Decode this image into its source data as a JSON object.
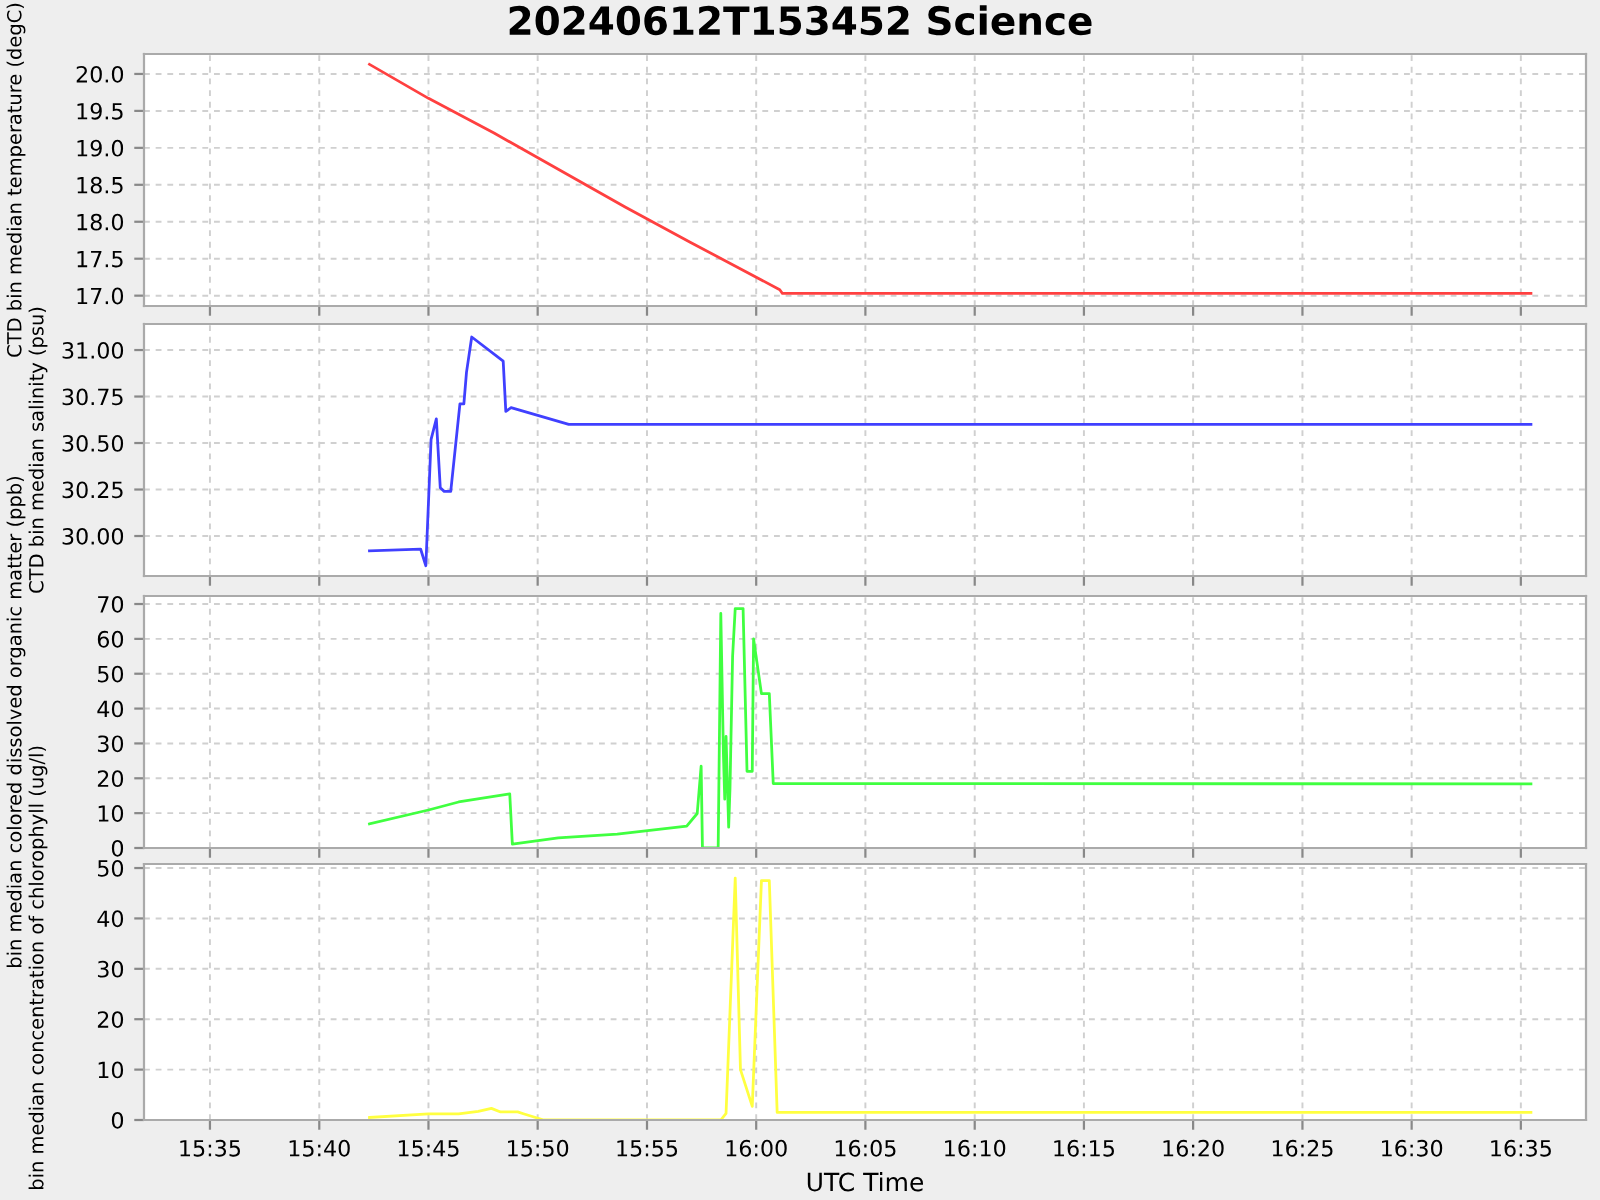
{
  "chart_data": [
    {
      "type": "line",
      "title": "20240612T153452 Science",
      "ylabel": "CTD bin median temperature (degC)",
      "xlim": [
        15.533,
        16.633
      ],
      "ylim": [
        16.86,
        20.27
      ],
      "yticks": [
        {
          "value": 17.0,
          "label": "17.0"
        },
        {
          "value": 17.5,
          "label": "17.5"
        },
        {
          "value": 18.0,
          "label": "18.0"
        },
        {
          "value": 18.5,
          "label": "18.5"
        },
        {
          "value": 19.0,
          "label": "19.0"
        },
        {
          "value": 19.5,
          "label": "19.5"
        },
        {
          "value": 20.0,
          "label": "20.0"
        }
      ],
      "grid": true,
      "tick_labels": "y",
      "series": [
        {
          "color": "#ff4040",
          "x": [
            15.705,
            15.75,
            15.8,
            15.85,
            15.9,
            15.95,
            16.018,
            16.02,
            16.591
          ],
          "values": [
            20.13,
            19.67,
            19.2,
            18.7,
            18.2,
            17.72,
            17.08,
            17.03,
            17.03
          ]
        }
      ]
    },
    {
      "type": "line",
      "ylabel": "CTD bin median salinity (psu)",
      "xlim": [
        15.533,
        16.633
      ],
      "ylim": [
        29.785,
        31.14
      ],
      "yticks": [
        {
          "value": 30.0,
          "label": "30.00"
        },
        {
          "value": 30.25,
          "label": "30.25"
        },
        {
          "value": 30.5,
          "label": "30.50"
        },
        {
          "value": 30.75,
          "label": "30.75"
        },
        {
          "value": 31.0,
          "label": "31.00"
        }
      ],
      "grid": true,
      "tick_labels": "y",
      "series": [
        {
          "color": "#4040ff",
          "x": [
            15.705,
            15.744,
            15.748,
            15.752,
            15.756,
            15.759,
            15.762,
            15.767,
            15.774,
            15.777,
            15.779,
            15.783,
            15.807,
            15.809,
            15.813,
            15.857,
            16.591
          ],
          "values": [
            29.92,
            29.93,
            29.84,
            30.52,
            30.63,
            30.26,
            30.24,
            30.24,
            30.71,
            30.71,
            30.88,
            31.07,
            30.94,
            30.67,
            30.69,
            30.6,
            30.6
          ]
        }
      ]
    },
    {
      "type": "line",
      "ylabel": "bin median colored dissolved organic matter (ppb)",
      "xlim": [
        15.533,
        16.633
      ],
      "ylim": [
        0,
        72.3
      ],
      "yticks": [
        0,
        10,
        20,
        30,
        40,
        50,
        60,
        70
      ],
      "grid": true,
      "tick_labels": "y",
      "series": [
        {
          "color": "#40ff40",
          "x": [
            15.705,
            15.75,
            15.773,
            15.812,
            15.814,
            15.849,
            15.894,
            15.947,
            15.955,
            15.958,
            15.959,
            15.971,
            15.973,
            15.975,
            15.976,
            15.977,
            15.979,
            15.98,
            15.982,
            15.984,
            15.99,
            15.993,
            15.997,
            15.998,
            16.004,
            16.01,
            16.013,
            16.591
          ],
          "values": [
            6.9,
            10.9,
            13.2,
            15.5,
            1.1,
            2.9,
            4,
            6.3,
            9.9,
            23.5,
            0,
            0,
            67.3,
            27,
            14,
            32,
            6,
            17,
            55,
            68.7,
            68.7,
            22,
            22,
            60,
            44.3,
            44.3,
            18.5,
            18.4
          ]
        }
      ]
    },
    {
      "type": "line",
      "ylabel": "bin median concentration of chlorophyll (ug/l)",
      "xlabel": "UTC Time",
      "xlim": [
        15.533,
        16.633
      ],
      "ylim": [
        0,
        50.8
      ],
      "yticks": [
        0,
        10,
        20,
        30,
        40,
        50
      ],
      "grid": true,
      "xticks": [
        {
          "value": 15.5833,
          "label": "15:35"
        },
        {
          "value": 15.6667,
          "label": "15:40"
        },
        {
          "value": 15.75,
          "label": "15:45"
        },
        {
          "value": 15.8333,
          "label": "15:50"
        },
        {
          "value": 15.9167,
          "label": "15:55"
        },
        {
          "value": 16.0,
          "label": "16:00"
        },
        {
          "value": 16.0833,
          "label": "16:05"
        },
        {
          "value": 16.1667,
          "label": "16:10"
        },
        {
          "value": 16.25,
          "label": "16:15"
        },
        {
          "value": 16.3333,
          "label": "16:20"
        },
        {
          "value": 16.4167,
          "label": "16:25"
        },
        {
          "value": 16.5,
          "label": "16:30"
        },
        {
          "value": 16.5833,
          "label": "16:35"
        }
      ],
      "series": [
        {
          "color": "#ffff40",
          "x": [
            15.705,
            15.75,
            15.773,
            15.788,
            15.798,
            15.805,
            15.818,
            15.823,
            15.838,
            15.973,
            15.977,
            15.984,
            15.988,
            15.997,
            16.004,
            16.01,
            16.016,
            16.591
          ],
          "values": [
            0.5,
            1.2,
            1.2,
            1.7,
            2.3,
            1.6,
            1.6,
            1.2,
            0,
            0,
            1.3,
            48,
            10,
            2.7,
            47.5,
            47.5,
            1.5,
            1.5
          ]
        }
      ]
    }
  ]
}
